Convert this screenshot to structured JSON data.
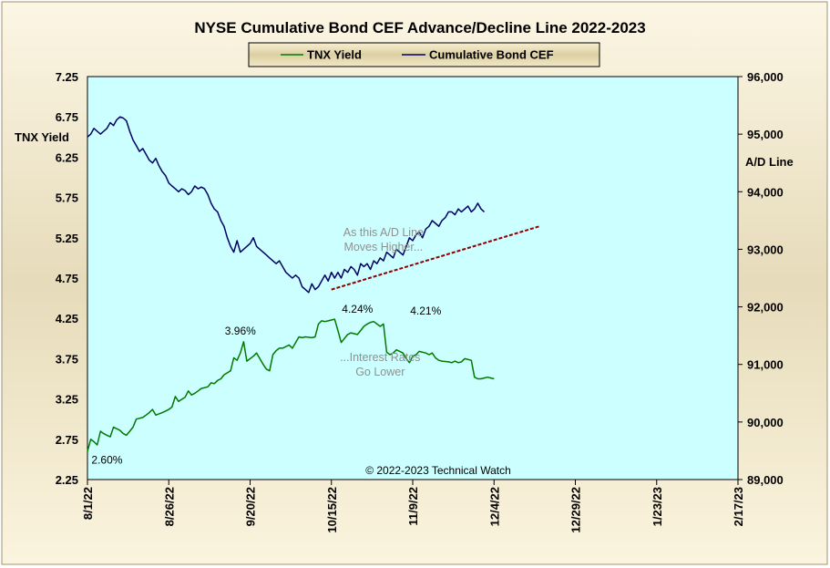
{
  "chart_data": {
    "type": "line",
    "title": "NYSE Cumulative  Bond CEF Advance/Decline  Line 2022-2023",
    "y_left_label": "TNX  Yield",
    "y_right_label": "A/D Line",
    "y_left_ticks": [
      "7.25",
      "6.75",
      "6.25",
      "5.75",
      "5.25",
      "4.75",
      "4.25",
      "3.75",
      "3.25",
      "2.75",
      "2.25"
    ],
    "y_left_range": [
      2.25,
      7.25
    ],
    "y_right_ticks": [
      "96,000",
      "95,000",
      "94,000",
      "93,000",
      "92,000",
      "91,000",
      "90,000",
      "89,000"
    ],
    "y_right_range": [
      89000,
      96000
    ],
    "x_ticks": [
      "8/1/22",
      "8/26/22",
      "9/20/22",
      "10/15/22",
      "11/9/22",
      "12/4/22",
      "12/29/22",
      "1/23/23",
      "2/17/23"
    ],
    "x_tick_days": [
      0,
      25,
      50,
      75,
      100,
      125,
      150,
      175,
      200
    ],
    "x_range_days": [
      0,
      200
    ],
    "grid": false,
    "legend_position": "top-center",
    "legend": [
      {
        "name": "TNX Yield",
        "color": "#007a00"
      },
      {
        "name": "Cumulative Bond CEF",
        "color": "#000066"
      }
    ],
    "series": [
      {
        "name": "TNX Yield",
        "axis": "left",
        "color": "#007a00",
        "x": [
          0,
          1,
          2,
          3,
          4,
          5,
          6,
          7,
          8,
          10,
          11,
          12,
          13,
          14,
          15,
          17,
          18,
          19,
          20,
          21,
          23,
          24,
          25,
          26,
          27,
          28,
          30,
          31,
          32,
          33,
          34,
          35,
          37,
          38,
          39,
          40,
          41,
          42,
          44,
          45,
          46,
          47,
          48,
          49,
          51,
          52,
          53,
          54,
          55,
          56,
          57,
          58,
          59,
          60,
          62,
          63,
          64,
          65,
          66,
          67,
          69,
          70,
          71,
          72,
          73,
          74,
          76,
          77,
          78,
          79,
          80,
          81,
          83,
          84,
          85,
          86,
          87,
          88,
          90,
          91,
          92,
          93,
          94,
          95,
          97,
          98,
          99,
          100,
          101,
          102,
          104,
          105,
          106,
          107,
          108,
          109,
          111,
          112,
          113,
          114,
          115,
          116,
          118,
          119,
          120,
          121,
          122,
          123,
          124,
          125
        ],
        "values": [
          2.6,
          2.75,
          2.72,
          2.68,
          2.85,
          2.82,
          2.8,
          2.78,
          2.9,
          2.86,
          2.82,
          2.8,
          2.85,
          2.9,
          3.0,
          3.02,
          3.05,
          3.08,
          3.12,
          3.05,
          3.08,
          3.1,
          3.12,
          3.15,
          3.28,
          3.22,
          3.27,
          3.35,
          3.3,
          3.32,
          3.35,
          3.38,
          3.4,
          3.45,
          3.44,
          3.48,
          3.5,
          3.55,
          3.6,
          3.76,
          3.73,
          3.82,
          3.96,
          3.72,
          3.78,
          3.82,
          3.75,
          3.68,
          3.62,
          3.6,
          3.8,
          3.85,
          3.88,
          3.88,
          3.92,
          3.88,
          3.95,
          4.02,
          4.01,
          4.02,
          4.01,
          4.02,
          4.18,
          4.22,
          4.21,
          4.22,
          4.24,
          4.1,
          3.95,
          4.0,
          4.05,
          4.07,
          4.05,
          4.1,
          4.15,
          4.18,
          4.2,
          4.21,
          4.15,
          4.18,
          3.83,
          3.8,
          3.82,
          3.86,
          3.82,
          3.75,
          3.7,
          3.78,
          3.8,
          3.84,
          3.82,
          3.8,
          3.82,
          3.76,
          3.73,
          3.72,
          3.71,
          3.7,
          3.72,
          3.7,
          3.71,
          3.75,
          3.73,
          3.52,
          3.5,
          3.5,
          3.51,
          3.52,
          3.51,
          3.5
        ]
      },
      {
        "name": "Cumulative Bond CEF",
        "axis": "right",
        "color": "#000066",
        "x": [
          0,
          1,
          2,
          3,
          4,
          5,
          6,
          7,
          8,
          9,
          10,
          11,
          12,
          13,
          14,
          15,
          16,
          17,
          18,
          19,
          20,
          21,
          22,
          23,
          24,
          25,
          26,
          27,
          28,
          29,
          30,
          31,
          32,
          33,
          34,
          35,
          36,
          37,
          38,
          39,
          40,
          41,
          42,
          43,
          44,
          45,
          46,
          47,
          48,
          49,
          50,
          51,
          52,
          53,
          54,
          55,
          56,
          57,
          58,
          59,
          60,
          61,
          62,
          63,
          64,
          65,
          66,
          67,
          68,
          69,
          70,
          71,
          72,
          73,
          74,
          75,
          76,
          77,
          78,
          79,
          80,
          81,
          82,
          83,
          84,
          85,
          86,
          87,
          88,
          89,
          90,
          91,
          92,
          93,
          94,
          95,
          96,
          97,
          98,
          99,
          100,
          101,
          102,
          103,
          104,
          105,
          106,
          107,
          108,
          109,
          110,
          111,
          112,
          113,
          114,
          115,
          116,
          117,
          118,
          119,
          120,
          121,
          122
        ],
        "values": [
          94950,
          95000,
          95100,
          95050,
          95000,
          95050,
          95100,
          95200,
          95150,
          95250,
          95300,
          95280,
          95230,
          95050,
          94900,
          94800,
          94700,
          94750,
          94650,
          94550,
          94500,
          94580,
          94450,
          94350,
          94280,
          94150,
          94100,
          94050,
          94000,
          94050,
          94020,
          93950,
          94000,
          94100,
          94050,
          94080,
          94050,
          93950,
          93800,
          93700,
          93650,
          93500,
          93400,
          93200,
          93050,
          92950,
          93150,
          92950,
          93000,
          93050,
          93100,
          93200,
          93050,
          93000,
          92950,
          92900,
          92850,
          92800,
          92750,
          92800,
          92700,
          92600,
          92550,
          92500,
          92550,
          92500,
          92350,
          92300,
          92250,
          92400,
          92300,
          92350,
          92450,
          92550,
          92450,
          92600,
          92500,
          92600,
          92500,
          92650,
          92600,
          92700,
          92650,
          92550,
          92750,
          92700,
          92750,
          92650,
          92800,
          92750,
          92850,
          92800,
          92950,
          92900,
          92850,
          93000,
          92950,
          92900,
          93050,
          93200,
          93150,
          93250,
          93300,
          93200,
          93350,
          93400,
          93500,
          93450,
          93400,
          93500,
          93550,
          93650,
          93650,
          93600,
          93700,
          93650,
          93700,
          93750,
          93650,
          93700,
          93800,
          93700,
          93650
        ]
      }
    ],
    "trend_line": {
      "color": "#8b0000",
      "points": [
        [
          75,
          92300
        ],
        [
          139,
          93400
        ]
      ]
    },
    "annotations": [
      {
        "id": "ad-note",
        "lines": [
          "As this A/D Line",
          "Moves Higher..."
        ],
        "x": 91,
        "y_left": 5.27
      },
      {
        "id": "rate-note",
        "lines": [
          "...Interest Rates",
          "Go Lower"
        ],
        "x": 90,
        "y_left": 3.72
      },
      {
        "id": "low-label",
        "text": "2.60%",
        "x": 6,
        "y_left": 2.45
      },
      {
        "id": "peak1-label",
        "text": "3.96%",
        "x": 47,
        "y_left": 4.05
      },
      {
        "id": "peak2-label",
        "text": "4.24%",
        "x": 83,
        "y_left": 4.32
      },
      {
        "id": "peak3-label",
        "text": "4.21%",
        "x": 104,
        "y_left": 4.3
      }
    ],
    "copyright": "© 2022-2023  Technical  Watch"
  }
}
